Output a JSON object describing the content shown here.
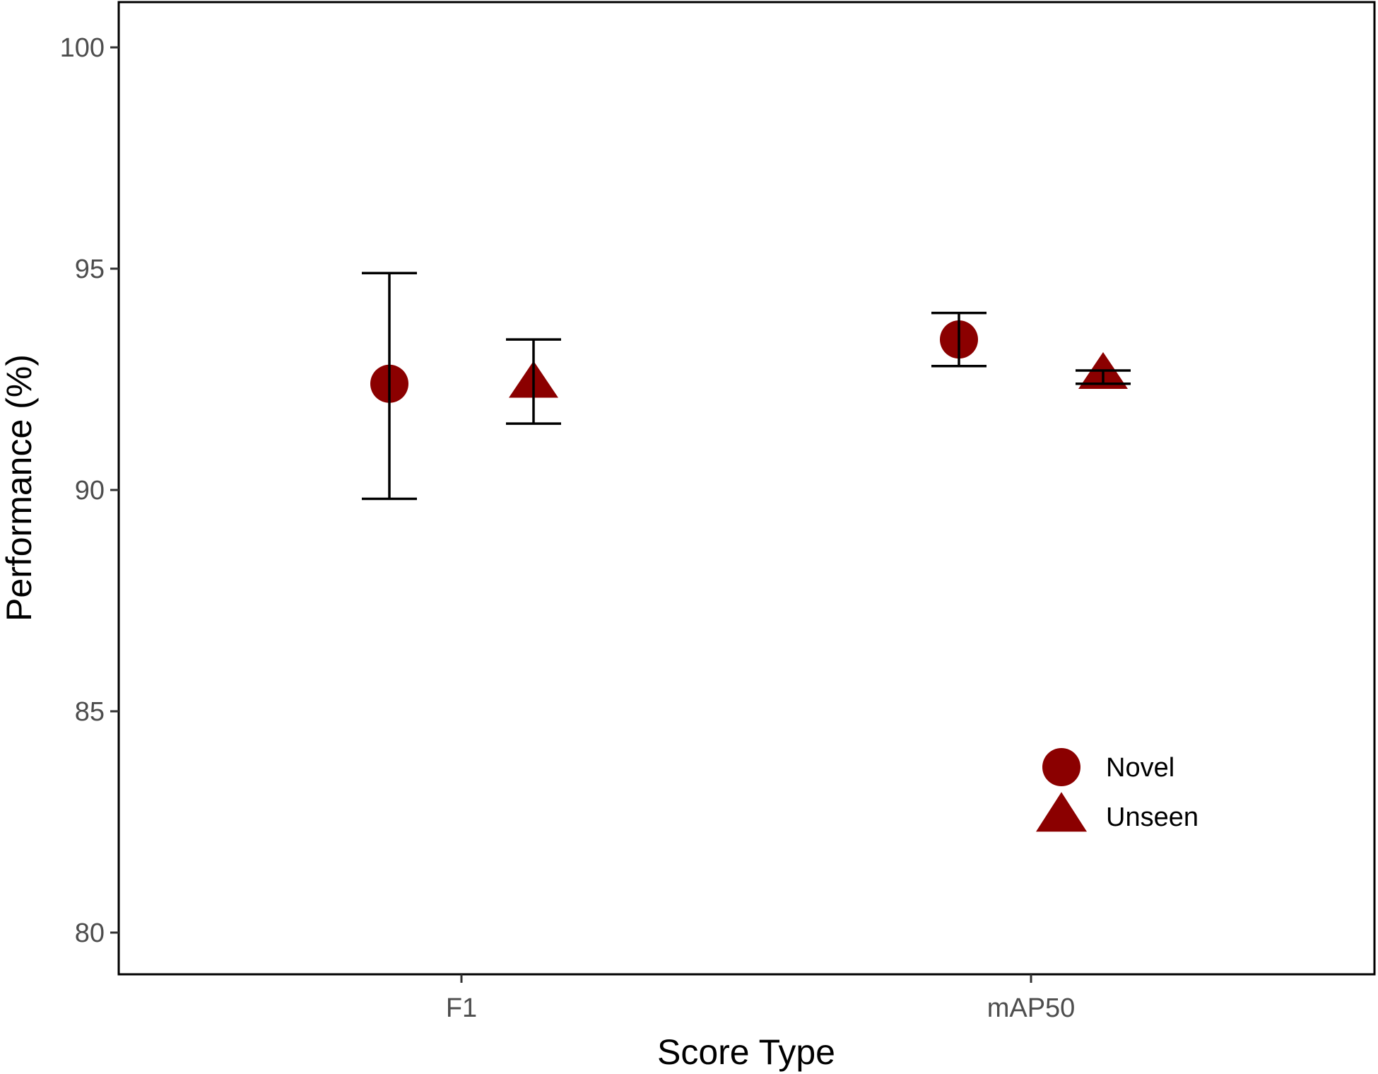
{
  "chart_data": {
    "type": "scatter",
    "title": "",
    "xlabel": "Score Type",
    "ylabel": "Performance (%)",
    "categories": [
      "F1",
      "mAP50"
    ],
    "ylim": [
      79,
      101
    ],
    "yticks": [
      80,
      85,
      90,
      95,
      100
    ],
    "grid": false,
    "legend_position": "bottom-right (inside)",
    "marker_color": "#8b0000",
    "errorbar_color": "#000000",
    "series": [
      {
        "name": "Novel",
        "marker": "circle",
        "values": [
          92.4,
          93.4
        ],
        "error_low": [
          89.8,
          92.8
        ],
        "error_high": [
          94.9,
          94.0
        ]
      },
      {
        "name": "Unseen",
        "marker": "triangle",
        "values": [
          92.4,
          92.6
        ],
        "error_low": [
          91.5,
          92.4
        ],
        "error_high": [
          93.4,
          92.7
        ]
      }
    ]
  }
}
